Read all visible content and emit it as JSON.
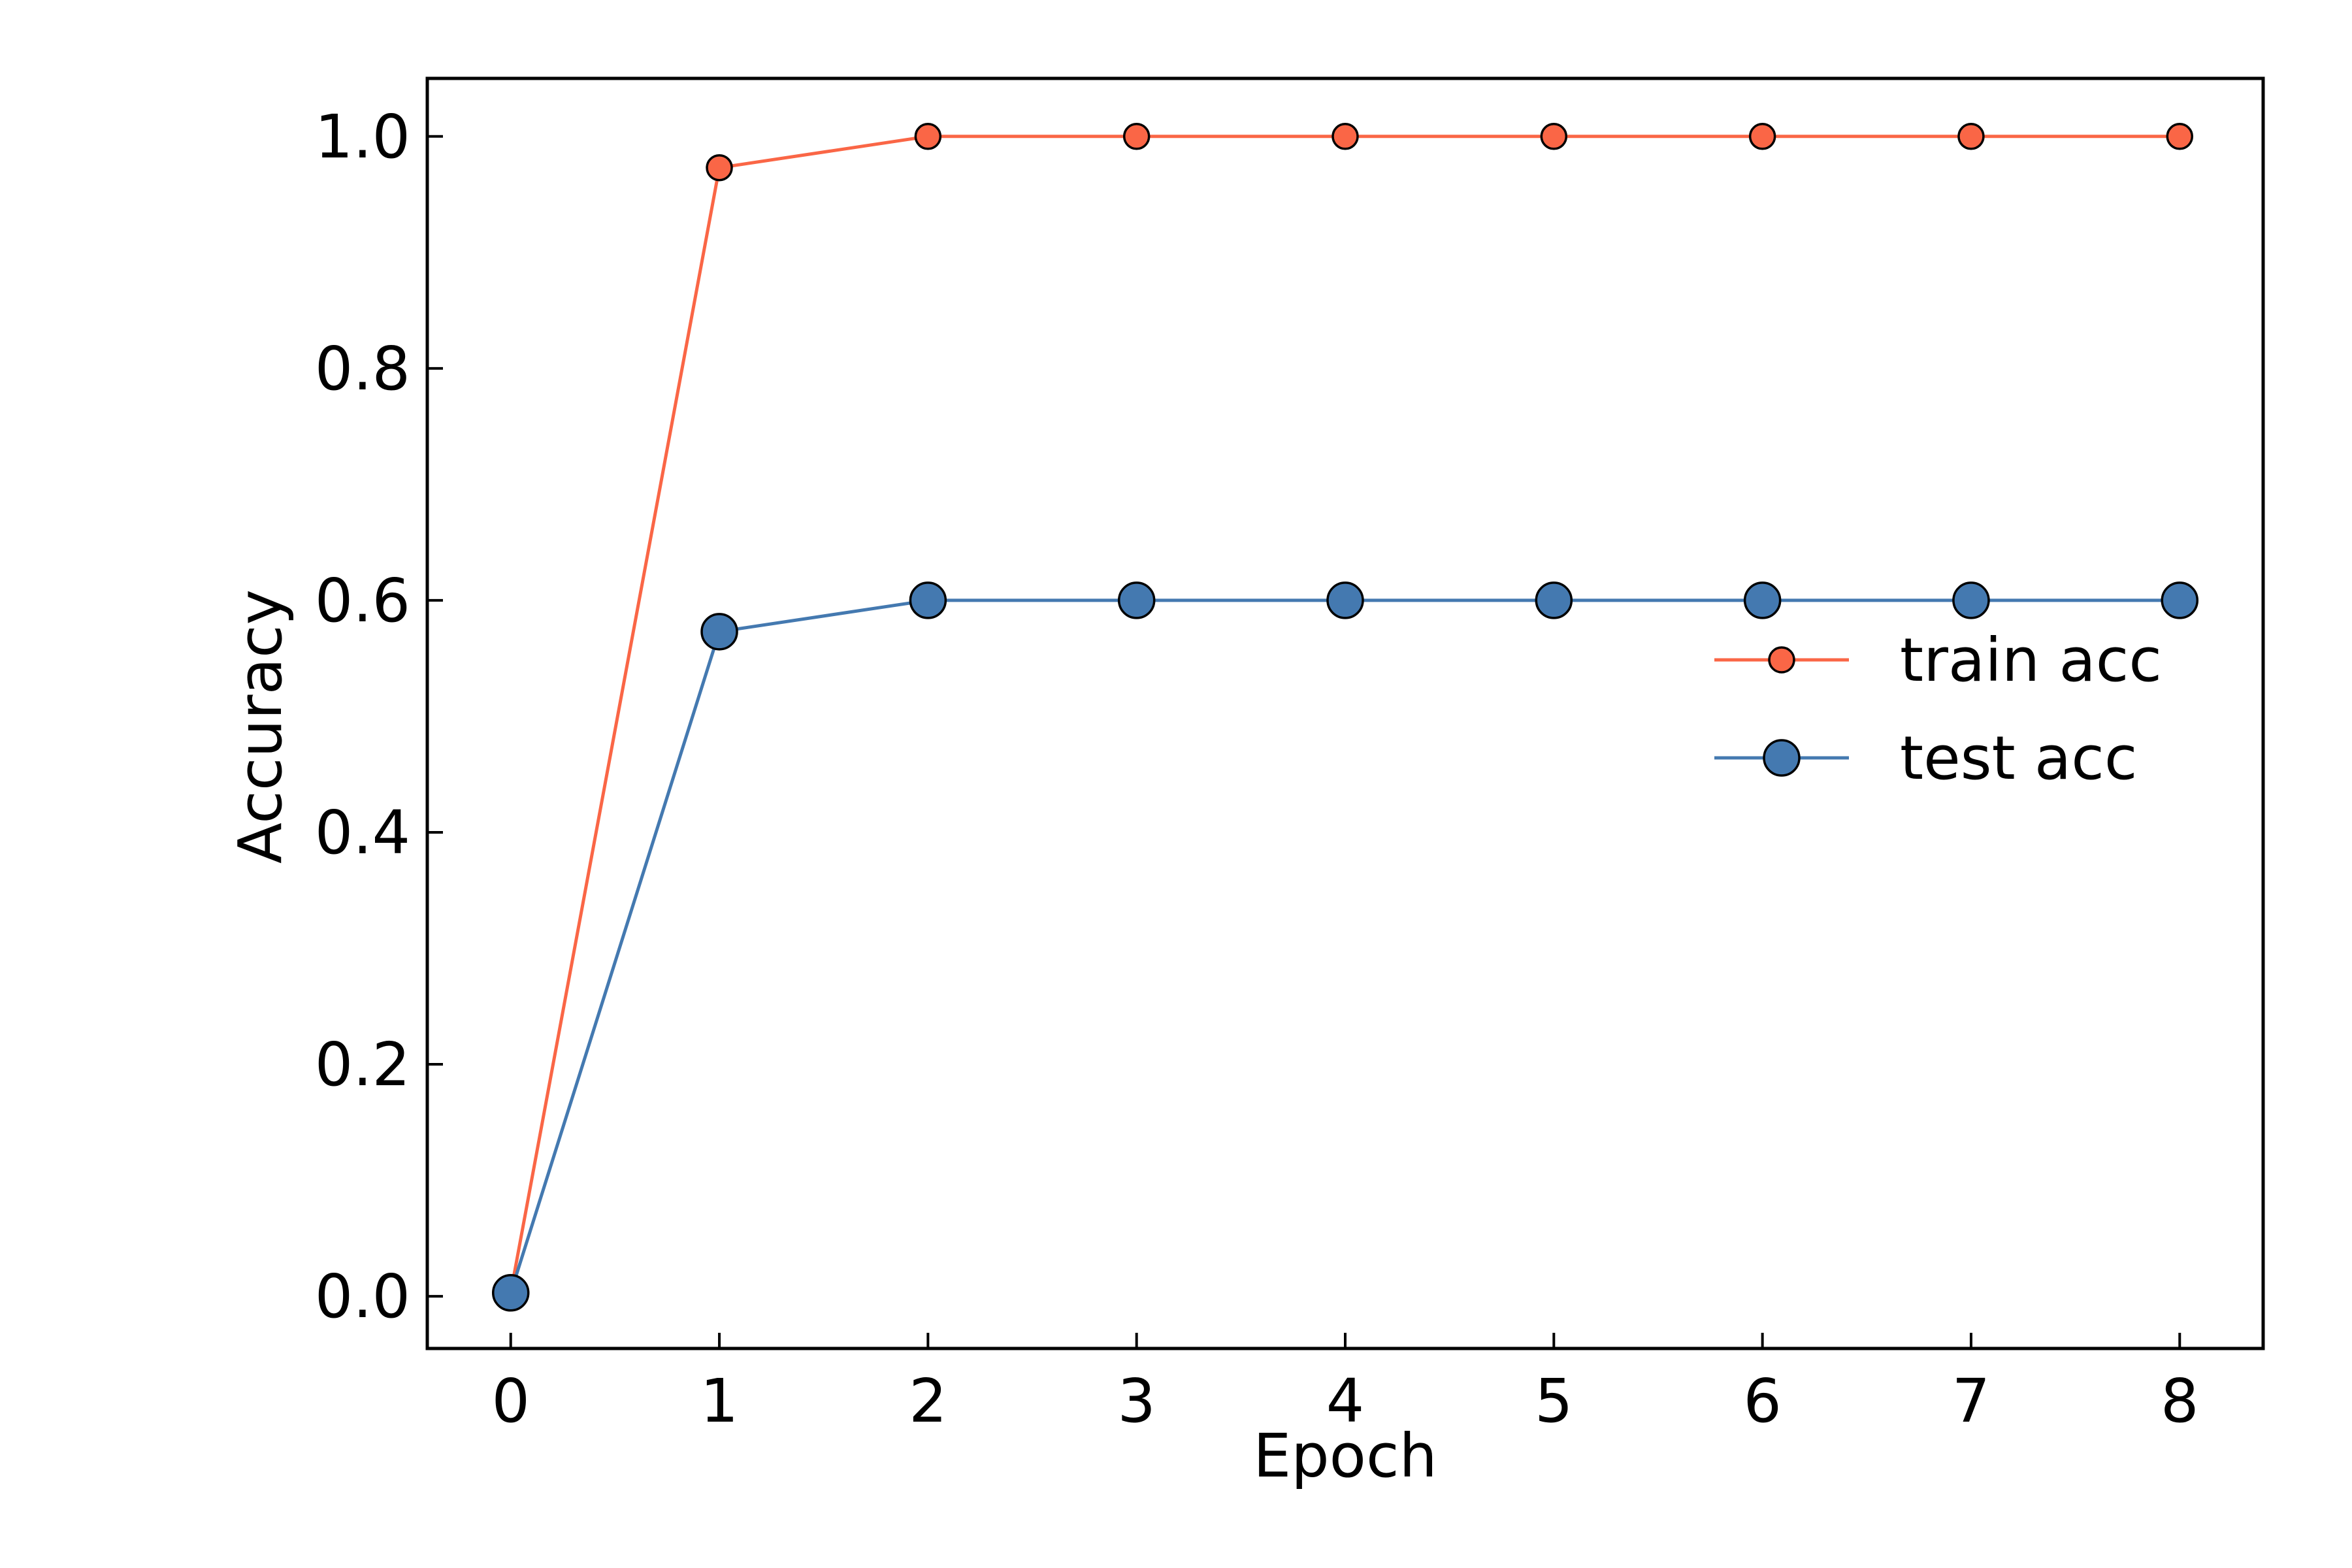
{
  "chart_data": {
    "type": "line",
    "xlabel": "Epoch",
    "ylabel": "Accuracy",
    "x": [
      0,
      1,
      2,
      3,
      4,
      5,
      6,
      7,
      8
    ],
    "xlim": [
      -0.4,
      8.4
    ],
    "ylim": [
      -0.045,
      1.05
    ],
    "xticks": [
      0,
      1,
      2,
      3,
      4,
      5,
      6,
      7,
      8
    ],
    "xtick_labels": [
      "0",
      "1",
      "2",
      "3",
      "4",
      "5",
      "6",
      "7",
      "8"
    ],
    "yticks": [
      0.0,
      0.2,
      0.4,
      0.6,
      0.8,
      1.0
    ],
    "ytick_labels": [
      "0.0",
      "0.2",
      "0.4",
      "0.6",
      "0.8",
      "1.0"
    ],
    "grid": false,
    "legend_position": "center-right",
    "series": [
      {
        "name": "train acc",
        "color": "#FA6646",
        "marker": "circle-small",
        "values": [
          0.003,
          0.973,
          1.0,
          1.0,
          1.0,
          1.0,
          1.0,
          1.0,
          1.0
        ]
      },
      {
        "name": "test acc",
        "color": "#4479B0",
        "marker": "circle-large",
        "values": [
          0.003,
          0.573,
          0.6,
          0.6,
          0.6,
          0.6,
          0.6,
          0.6,
          0.6
        ]
      }
    ]
  }
}
